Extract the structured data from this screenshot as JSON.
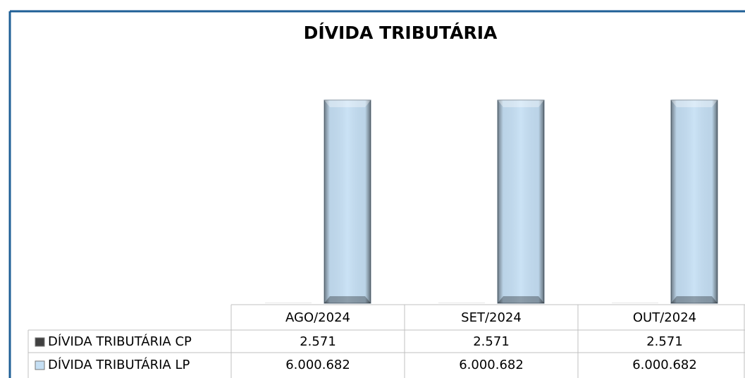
{
  "chart_data": {
    "type": "bar",
    "title": "DÍVIDA TRIBUTÁRIA",
    "categories": [
      "AGO/2024",
      "SET/2024",
      "OUT/2024"
    ],
    "series": [
      {
        "name": "DÍVIDA TRIBUTÁRIA CP",
        "color": "#404040",
        "values": [
          2571,
          2571,
          2571
        ],
        "value_labels": [
          "2.571",
          "2.571",
          "2.571"
        ]
      },
      {
        "name": "DÍVIDA TRIBUTÁRIA LP",
        "color": "#c5dff4",
        "values": [
          6000682,
          6000682,
          6000682
        ],
        "value_labels": [
          "6.000.682",
          "6.000.682",
          "6.000.682"
        ]
      }
    ]
  }
}
